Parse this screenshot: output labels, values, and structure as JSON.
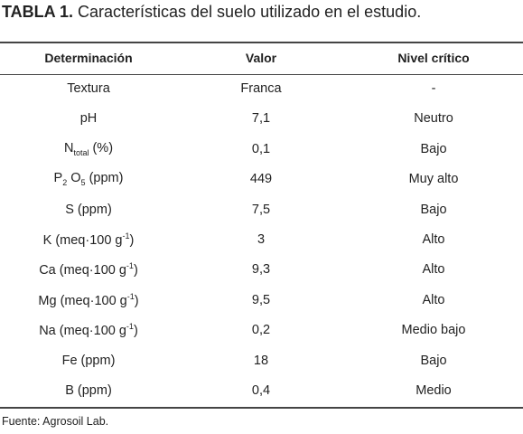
{
  "caption": {
    "label": "TABLA 1.",
    "text": " Características del suelo utilizado en el estudio."
  },
  "table": {
    "header": [
      "Determinación",
      "Valor",
      "Nivel crítico"
    ],
    "rows": [
      [
        [
          {
            "text": "Textura"
          }
        ],
        "Franca",
        "-"
      ],
      [
        [
          {
            "text": "pH"
          }
        ],
        "7,1",
        "Neutro"
      ],
      [
        [
          {
            "text": "N"
          },
          {
            "sub": "total"
          },
          {
            "text": " (%)"
          }
        ],
        "0,1",
        "Bajo"
      ],
      [
        [
          {
            "text": "P"
          },
          {
            "sub": "2"
          },
          {
            "text": " O"
          },
          {
            "sub": "5"
          },
          {
            "text": " (ppm)"
          }
        ],
        "449",
        "Muy alto"
      ],
      [
        [
          {
            "text": "S (ppm)"
          }
        ],
        "7,5",
        "Bajo"
      ],
      [
        [
          {
            "text": "K (meq·100 g"
          },
          {
            "sup": "-1"
          },
          {
            "text": ")"
          }
        ],
        "3",
        "Alto"
      ],
      [
        [
          {
            "text": "Ca (meq·100 g"
          },
          {
            "sup": "-1"
          },
          {
            "text": ")"
          }
        ],
        "9,3",
        "Alto"
      ],
      [
        [
          {
            "text": "Mg (meq·100 g"
          },
          {
            "sup": "-1"
          },
          {
            "text": ")"
          }
        ],
        "9,5",
        "Alto"
      ],
      [
        [
          {
            "text": "Na (meq·100 g"
          },
          {
            "sup": "-1"
          },
          {
            "text": ")"
          }
        ],
        "0,2",
        "Medio bajo"
      ],
      [
        [
          {
            "text": "Fe (ppm)"
          }
        ],
        "18",
        "Bajo"
      ],
      [
        [
          {
            "text": "B (ppm)"
          }
        ],
        "0,4",
        "Medio"
      ]
    ]
  },
  "footer": "Fuente: Agrosoil Lab."
}
